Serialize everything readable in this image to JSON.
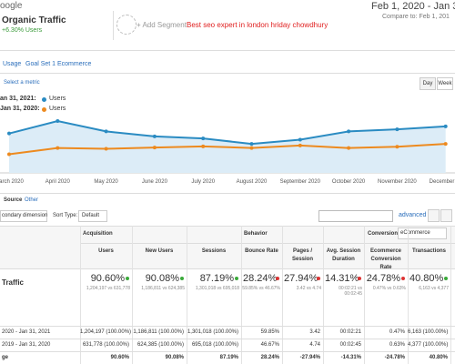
{
  "header": {
    "logo": "oogle",
    "segment": {
      "name": "Organic Traffic",
      "detail": "+6.30% Users"
    },
    "add_segment": "+ Add Segment",
    "watermark": "Best seo expert in london hriday chowdhury",
    "date_range": "Feb 1, 2020 - Jan 3",
    "compare": "Compare to: Feb 1, 201"
  },
  "tabs": [
    "Usage",
    "Goal Set 1",
    "Ecommerce"
  ],
  "chart": {
    "select_metric": "Select a metric",
    "buttons": [
      "Day",
      "Week"
    ],
    "x_labels": [
      "March 2020",
      "April 2020",
      "May 2020",
      "June 2020",
      "July 2020",
      "August 2020",
      "September 2020",
      "October 2020",
      "November 2020",
      "December 20"
    ],
    "series": [
      {
        "label": "an 31, 2021:",
        "name": "Users",
        "color": "#2a8bc2",
        "values": [
          95000,
          125000,
          100000,
          88000,
          83000,
          70000,
          80000,
          100000,
          105000,
          112000
        ]
      },
      {
        "label": "Jan 31, 2020:",
        "name": "Users",
        "color": "#ed8a1f",
        "values": [
          45000,
          60000,
          58000,
          61000,
          64000,
          60000,
          66000,
          60000,
          63000,
          70000
        ]
      }
    ]
  },
  "toolbar": {
    "primary": "Source",
    "other": "Other",
    "secondary": "condary dimension",
    "sort_label": "Sort Type:",
    "sort_value": "Default",
    "advanced": "advanced"
  },
  "table": {
    "groups": [
      "Acquisition",
      "Behavior",
      "Conversions"
    ],
    "conversion_select": "eCommerce",
    "columns": [
      "Users",
      "New Users",
      "Sessions",
      "Bounce Rate",
      "Pages / Session",
      "Avg. Session Duration",
      "Ecommerce Conversion Rate",
      "Transactions"
    ],
    "summary": {
      "label": "Traffic",
      "cells": [
        {
          "pct": "90.60%",
          "detail": "1,204,197 vs 631,778",
          "trend": "up"
        },
        {
          "pct": "90.08%",
          "detail": "1,186,811 vs 624,385",
          "trend": "up"
        },
        {
          "pct": "87.19%",
          "detail": "1,301,018 vs 695,018",
          "trend": "up"
        },
        {
          "pct": "28.24%",
          "detail": "59.85% vs 46.67%",
          "trend": "down"
        },
        {
          "pct": "27.94%",
          "detail": "3.42 vs 4.74",
          "trend": "down"
        },
        {
          "pct": "14.31%",
          "detail": "00:02:21 vs 00:02:45",
          "trend": "down"
        },
        {
          "pct": "24.78%",
          "detail": "0.47% vs 0.63%",
          "trend": "down"
        },
        {
          "pct": "40.80%",
          "detail": "6,163 vs 4,377",
          "trend": "up"
        }
      ]
    },
    "rows": [
      {
        "label": "2020 - Jan 31, 2021",
        "cells": [
          "1,204,197 (100.00%)",
          "1,186,811 (100.00%)",
          "1,301,018 (100.00%)",
          "59.85%",
          "3.42",
          "00:02:21",
          "0.47%",
          "6,163 (100.00%)"
        ]
      },
      {
        "label": "2019 - Jan 31, 2020",
        "cells": [
          "631,778 (100.00%)",
          "624,385 (100.00%)",
          "695,018 (100.00%)",
          "46.67%",
          "4.74",
          "00:02:45",
          "0.63%",
          "4,377 (100.00%)"
        ]
      },
      {
        "label": "ge",
        "cells": [
          "90.60%",
          "90.08%",
          "87.19%",
          "28.24%",
          "-27.94%",
          "-14.31%",
          "-24.78%",
          "40.80%"
        ]
      }
    ]
  }
}
